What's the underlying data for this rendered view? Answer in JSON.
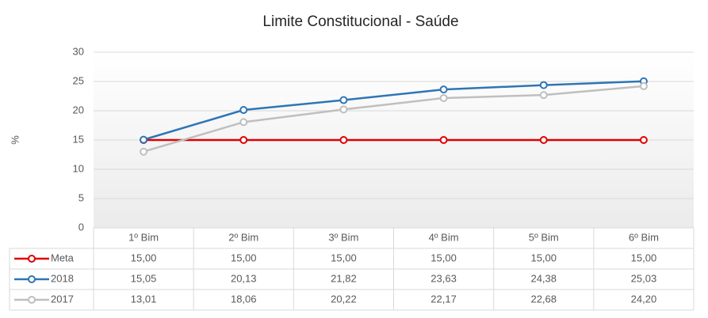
{
  "chart_data": {
    "type": "line",
    "title": "Limite Constitucional - Saúde",
    "y_label": "%",
    "categories": [
      "1º Bim",
      "2º Bim",
      "3º Bim",
      "4º Bim",
      "5º Bim",
      "6º Bim"
    ],
    "series": [
      {
        "name": "Meta",
        "color": "#e00000",
        "values": [
          15,
          15,
          15,
          15,
          15,
          15
        ],
        "value_labels": [
          "15,00",
          "15,00",
          "15,00",
          "15,00",
          "15,00",
          "15,00"
        ]
      },
      {
        "name": "2018",
        "color": "#2e75b6",
        "values": [
          15.05,
          20.13,
          21.82,
          23.63,
          24.38,
          25.03
        ],
        "value_labels": [
          "15,05",
          "20,13",
          "21,82",
          "23,63",
          "24,38",
          "25,03"
        ]
      },
      {
        "name": "2017",
        "color": "#bfbfbf",
        "values": [
          13.01,
          18.06,
          20.22,
          22.17,
          22.68,
          24.2
        ],
        "value_labels": [
          "13,01",
          "18,06",
          "20,22",
          "22,17",
          "22,68",
          "24,20"
        ]
      }
    ],
    "ylim": [
      0,
      30
    ],
    "yticks": [
      0,
      5,
      10,
      15,
      20,
      25,
      30
    ],
    "grid": true
  }
}
